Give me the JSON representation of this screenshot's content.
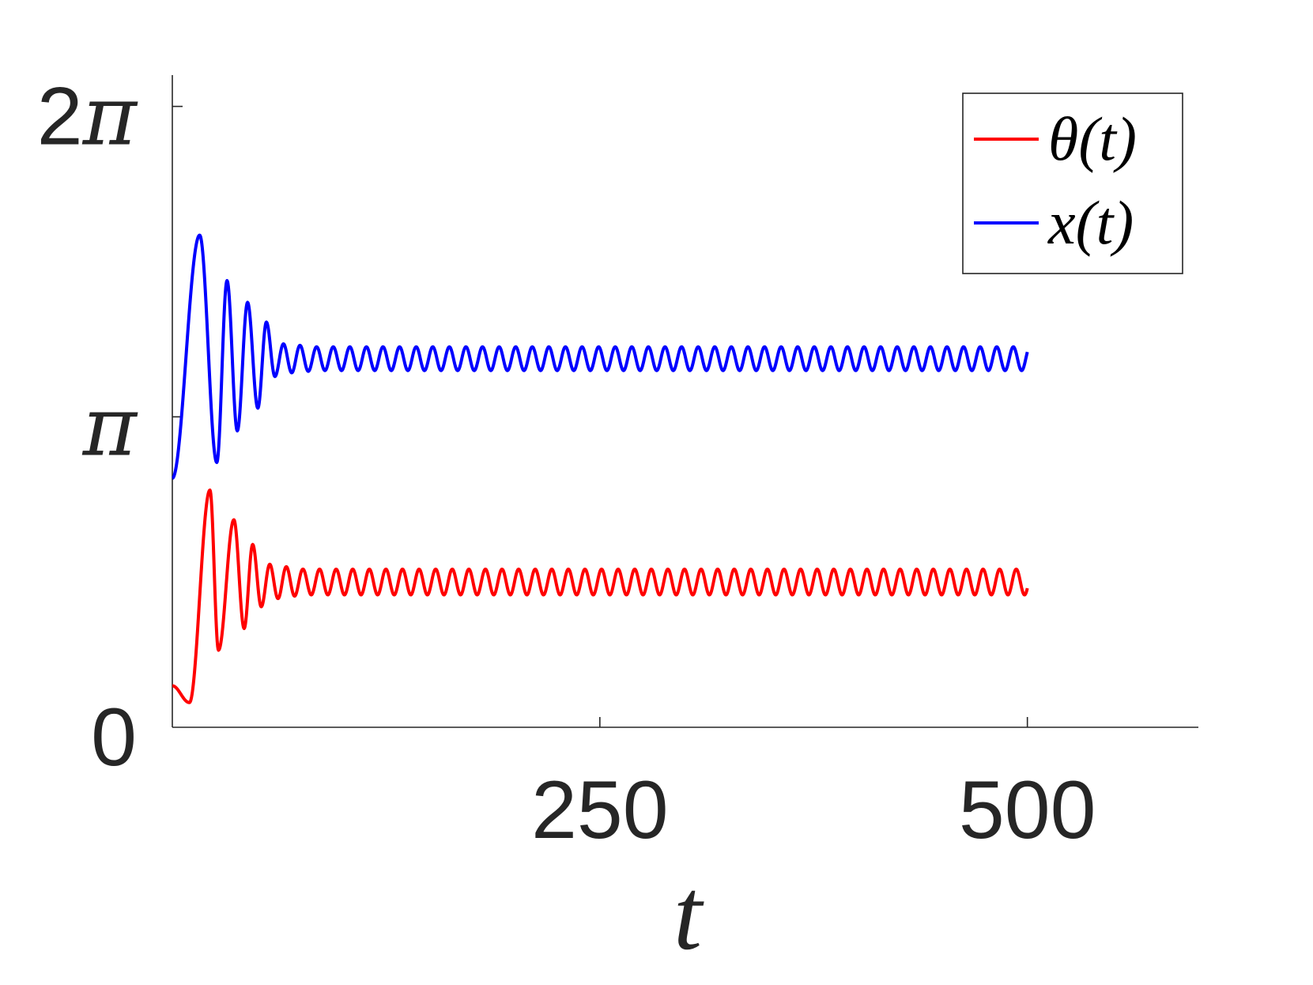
{
  "chart_data": {
    "type": "line",
    "title": "",
    "xlabel": "t",
    "ylabel": "",
    "xlim": [
      0,
      600
    ],
    "ylim": [
      0,
      6.6
    ],
    "xticks": [
      {
        "value": 250,
        "label": "250"
      },
      {
        "value": 500,
        "label": "500"
      }
    ],
    "yticks": [
      {
        "value": 0,
        "label": "0"
      },
      {
        "value": 3.14159,
        "label": "π"
      },
      {
        "value": 6.28319,
        "label": "2π"
      }
    ],
    "grid": false,
    "legend_position": "top-right",
    "series": [
      {
        "name": "θ(t)",
        "color": "#ff0000",
        "x_range": [
          0,
          500
        ],
        "initial_value": 0.42,
        "transient_dip": {
          "t": 10,
          "value": 0.25
        },
        "transient_peaks": [
          {
            "t": 22,
            "value": 2.4
          },
          {
            "t": 27,
            "value": 0.78
          },
          {
            "t": 36,
            "value": 2.1
          },
          {
            "t": 42,
            "value": 1.0
          },
          {
            "t": 47,
            "value": 1.85
          },
          {
            "t": 52,
            "value": 1.22
          },
          {
            "t": 57,
            "value": 1.65
          }
        ],
        "steady_mean": 1.47,
        "steady_amplitude": 0.13,
        "steady_period": 9.7
      },
      {
        "name": "x(t)",
        "color": "#0000ff",
        "x_range": [
          0,
          500
        ],
        "initial_value": 2.52,
        "transient_peaks": [
          {
            "t": 16,
            "value": 4.98
          },
          {
            "t": 26,
            "value": 2.68
          },
          {
            "t": 32,
            "value": 4.52
          },
          {
            "t": 38,
            "value": 3.0
          },
          {
            "t": 44,
            "value": 4.3
          },
          {
            "t": 50,
            "value": 3.23
          },
          {
            "t": 55,
            "value": 4.1
          },
          {
            "t": 60,
            "value": 3.55
          },
          {
            "t": 65,
            "value": 3.88
          }
        ],
        "steady_mean": 3.73,
        "steady_amplitude": 0.12,
        "steady_period": 9.7
      }
    ]
  }
}
